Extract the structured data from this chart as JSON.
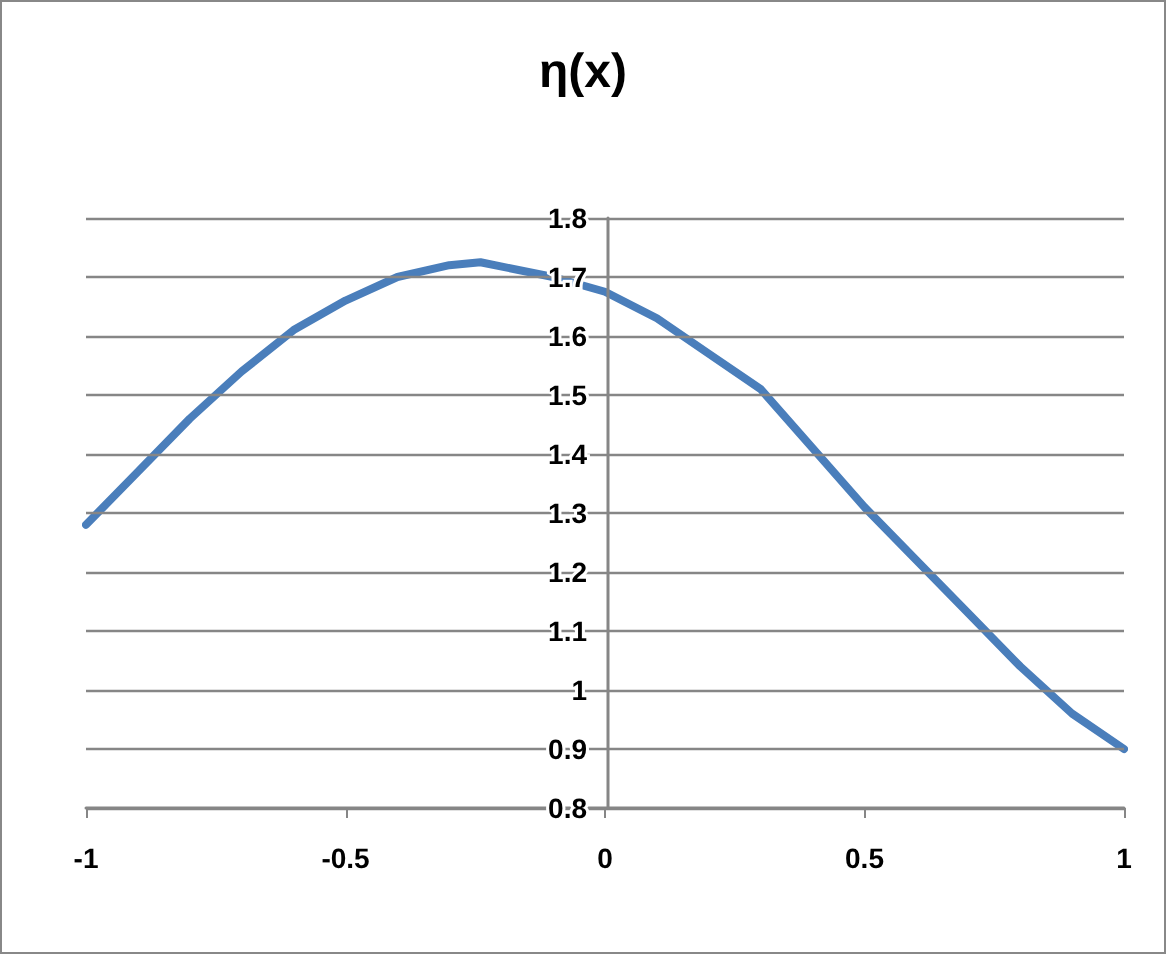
{
  "chart_data": {
    "type": "line",
    "title": "η(x)",
    "x": [
      -1,
      -0.9,
      -0.8,
      -0.7,
      -0.6,
      -0.5,
      -0.4,
      -0.3,
      -0.24,
      -0.1,
      0,
      0.1,
      0.2,
      0.3,
      0.4,
      0.5,
      0.6,
      0.7,
      0.8,
      0.9,
      1
    ],
    "series": [
      {
        "color": "#4a7ebb",
        "values": [
          1.28,
          1.37,
          1.46,
          1.54,
          1.61,
          1.66,
          1.7,
          1.72,
          1.725,
          1.7,
          1.675,
          1.63,
          1.57,
          1.51,
          1.41,
          1.31,
          1.22,
          1.13,
          1.04,
          0.96,
          0.9
        ]
      }
    ],
    "xlim": [
      -1,
      1
    ],
    "xticks": [
      -1,
      -0.5,
      0,
      0.5,
      1
    ],
    "ylim": [
      0.8,
      1.8
    ],
    "yticks": [
      0.8,
      0.9,
      1,
      1.1,
      1.2,
      1.3,
      1.4,
      1.5,
      1.6,
      1.7,
      1.8
    ],
    "grid": "y",
    "marker": "none",
    "line_style": "solid"
  }
}
